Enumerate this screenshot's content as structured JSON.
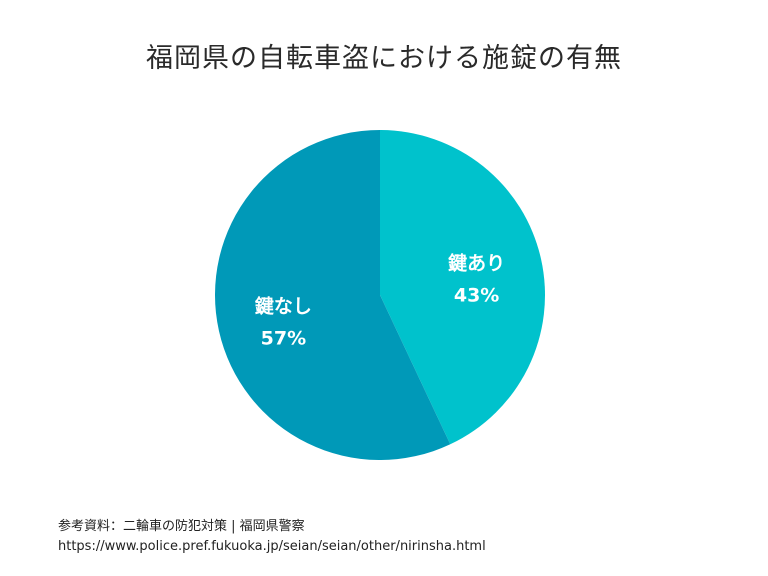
{
  "chart_data": {
    "type": "pie",
    "title": "福岡県の自転車盗における施錠の有無",
    "slices": [
      {
        "label": "鍵あり",
        "value": 43,
        "value_label": "43%",
        "color": "#00c2cc"
      },
      {
        "label": "鍵なし",
        "value": 57,
        "value_label": "57%",
        "color": "#0099b8"
      }
    ],
    "start_angle": "12 o'clock",
    "direction": "clockwise",
    "legend": "none"
  },
  "source": {
    "line1": "参考資料：二輪車の防犯対策 | 福岡県警察",
    "line2": "https://www.police.pref.fukuoka.jp/seian/seian/other/nirinsha.html"
  }
}
